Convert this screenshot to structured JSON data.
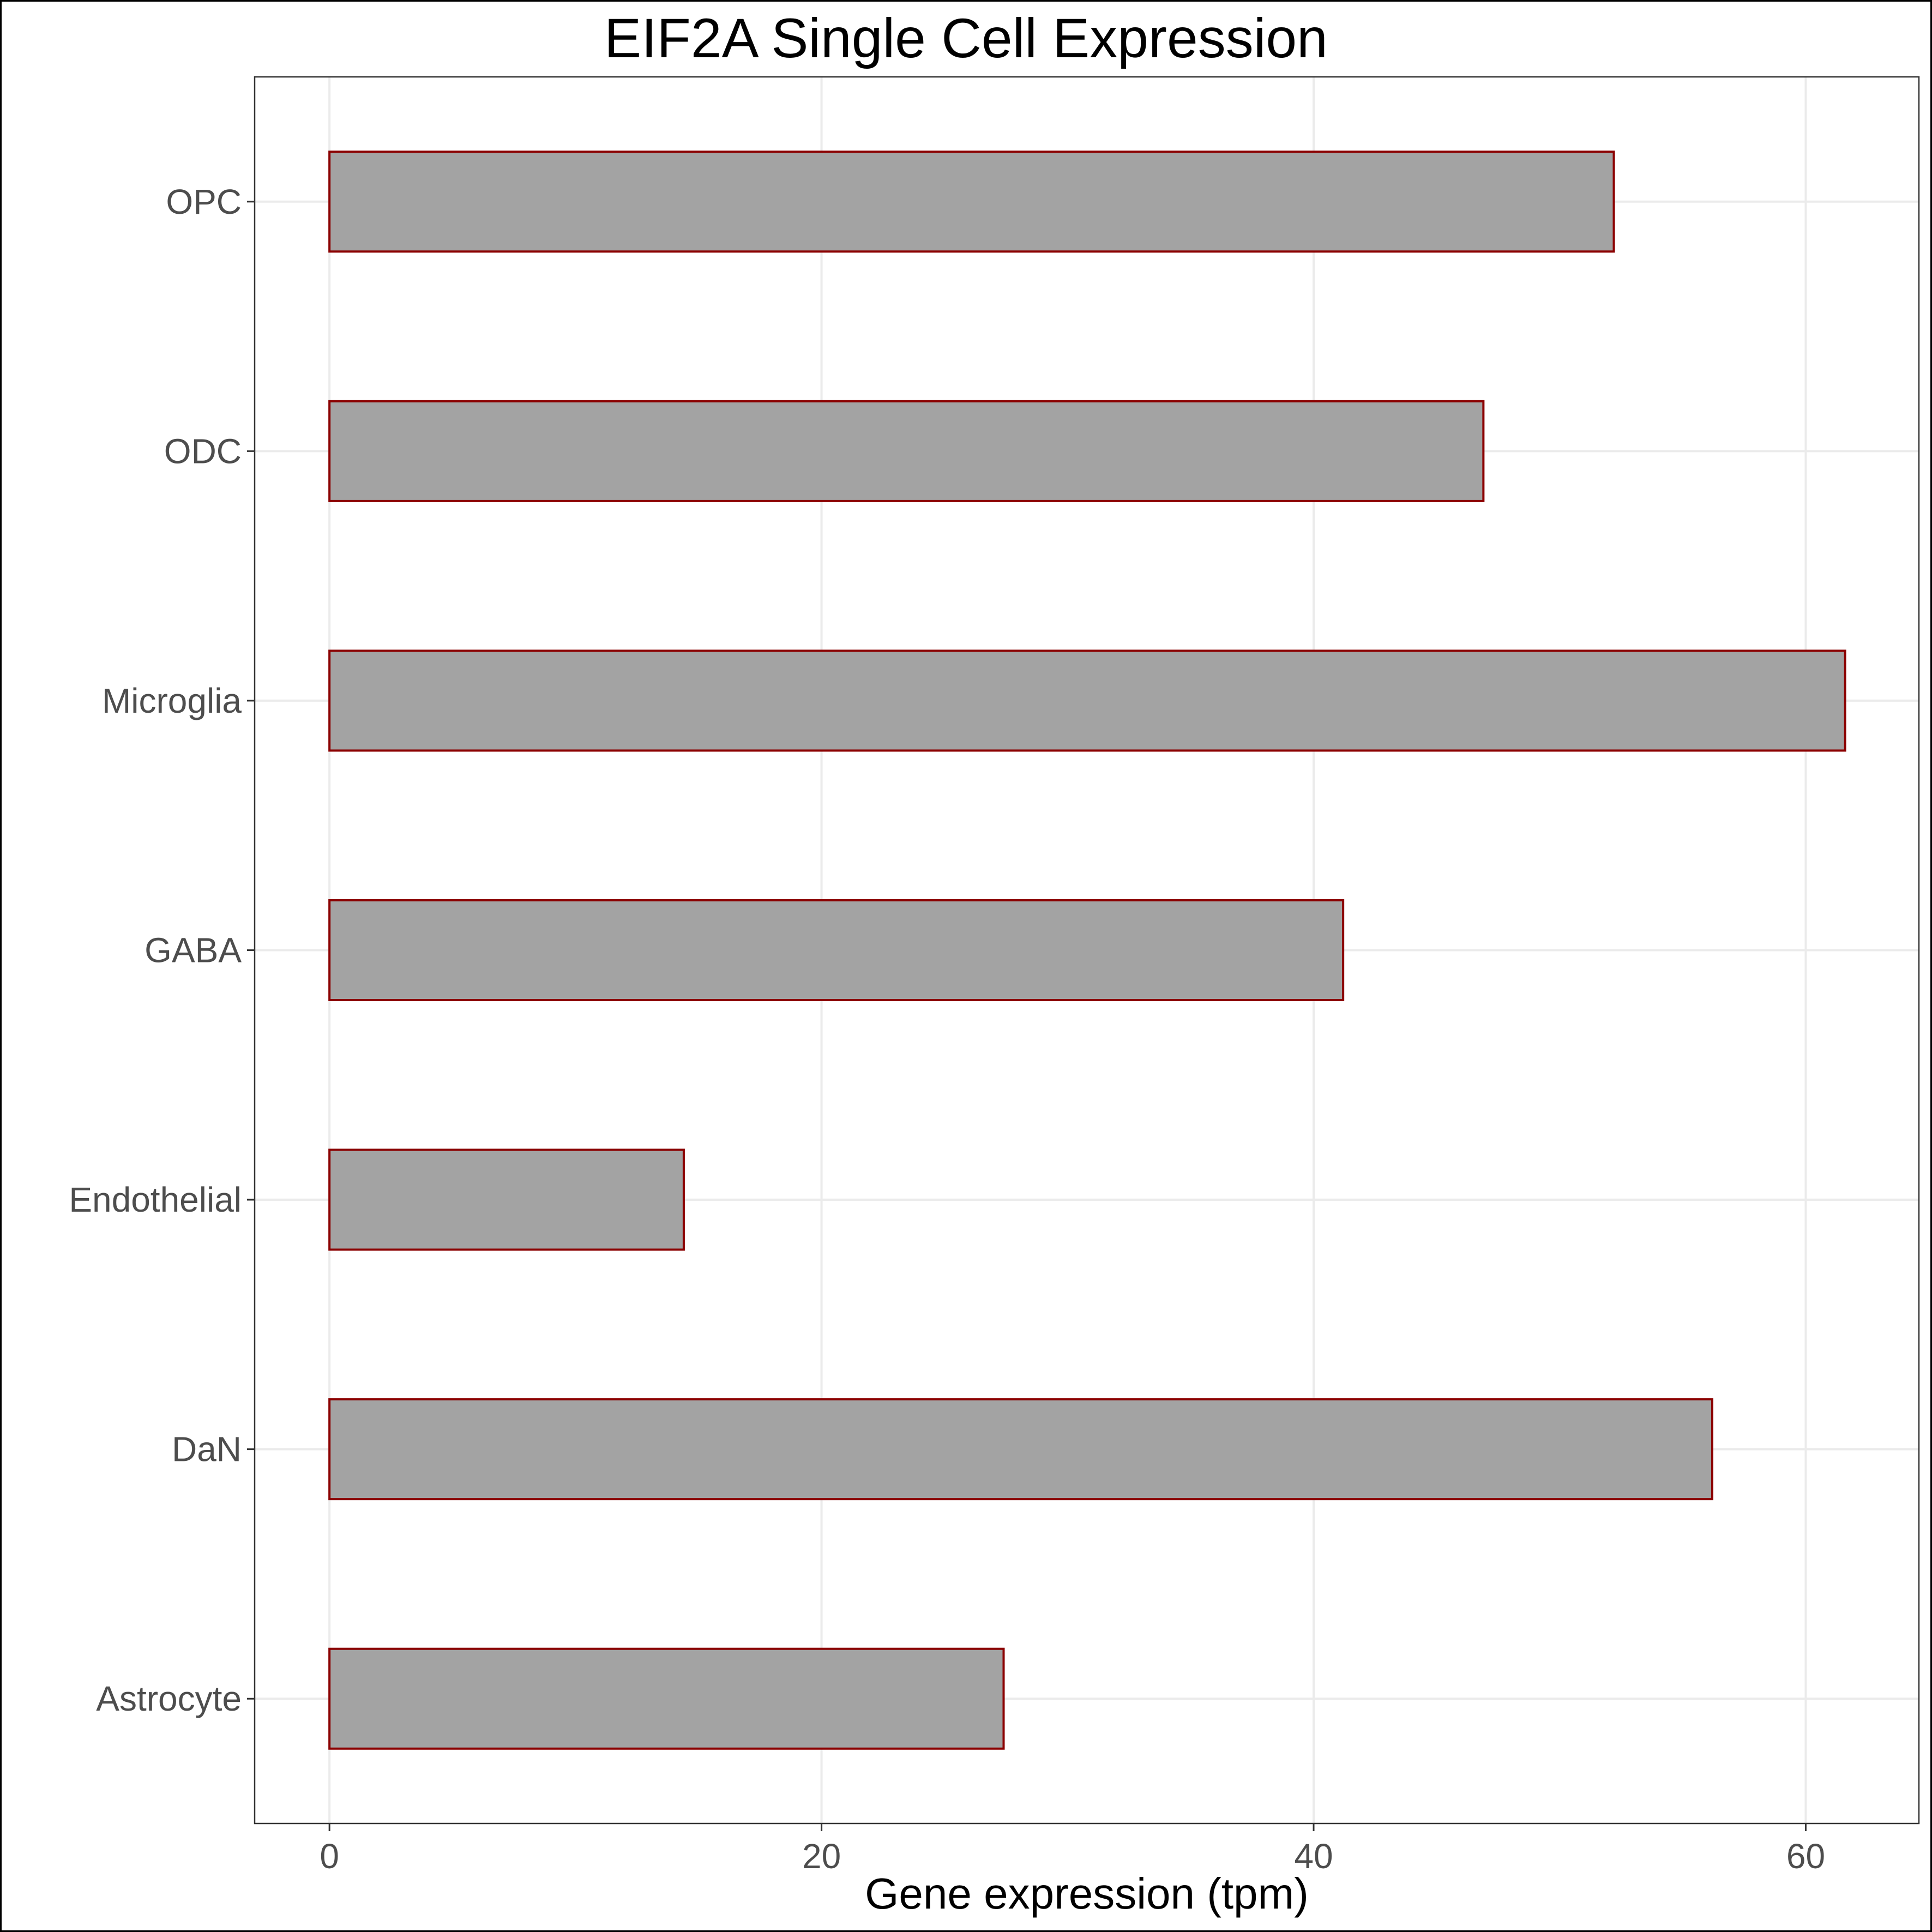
{
  "chart_data": {
    "type": "bar",
    "orientation": "horizontal",
    "title": "EIF2A Single Cell Expression",
    "xlabel": "Gene expression (tpm)",
    "ylabel": "",
    "categories": [
      "OPC",
      "ODC",
      "Microglia",
      "GABA",
      "Endothelial",
      "DaN",
      "Astrocyte"
    ],
    "values": [
      52.2,
      46.9,
      61.6,
      41.2,
      14.4,
      56.2,
      27.4
    ],
    "xlim": [
      -3.04,
      64.6
    ],
    "xticks": [
      0,
      20,
      40,
      60
    ],
    "grid": true,
    "bar_fill": "#a3a3a3",
    "bar_edge": "#8b0000",
    "gridline_color": "#ebebeb",
    "panel_border": "#333333"
  }
}
